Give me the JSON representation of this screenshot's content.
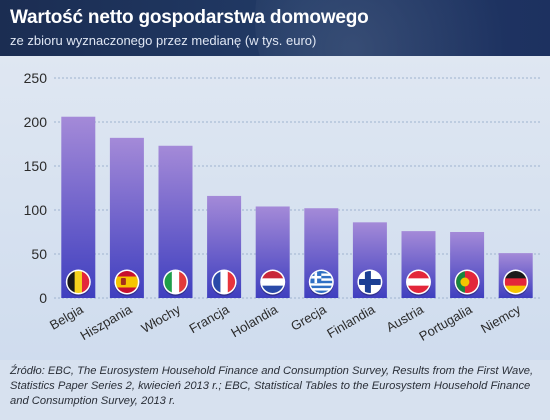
{
  "header": {
    "title": "Wartość netto gospodarstwa domowego",
    "subtitle": "ze zbioru wyznaczonego przez medianę (w tys. euro)"
  },
  "source": "Źródło: EBC, The Eurosystem Household Finance and Consumption Survey, Results from the First Wave, Statistics Paper Series 2, kwiecień 2013 r.; EBC, Statistical Tables to the Eurosystem Household Finance and Consumption Survey, 2013 r.",
  "colors": {
    "bar_top": "#a48ad8",
    "bar_bottom": "#3f3fbf",
    "gridline": "#9fb3cf",
    "axis_text": "#2b2b2b"
  },
  "chart_data": {
    "type": "bar",
    "title": "Wartość netto gospodarstwa domowego",
    "subtitle": "ze zbioru wyznaczonego przez medianę (w tys. euro)",
    "categories": [
      "Belgia",
      "Hiszpania",
      "Włochy",
      "Francja",
      "Holandia",
      "Grecja",
      "Finlandia",
      "Austria",
      "Portugalia",
      "Niemcy"
    ],
    "values": [
      206,
      182,
      173,
      116,
      104,
      102,
      86,
      76,
      75,
      51
    ],
    "ylim": [
      0,
      250
    ],
    "yticks": [
      0,
      50,
      100,
      150,
      200,
      250
    ],
    "grid": true,
    "xlabel": "",
    "ylabel": "",
    "flag_icons": [
      "flag-belgium-icon",
      "flag-spain-icon",
      "flag-italy-icon",
      "flag-france-icon",
      "flag-netherlands-icon",
      "flag-greece-icon",
      "flag-finland-icon",
      "flag-austria-icon",
      "flag-portugal-icon",
      "flag-germany-icon"
    ]
  }
}
